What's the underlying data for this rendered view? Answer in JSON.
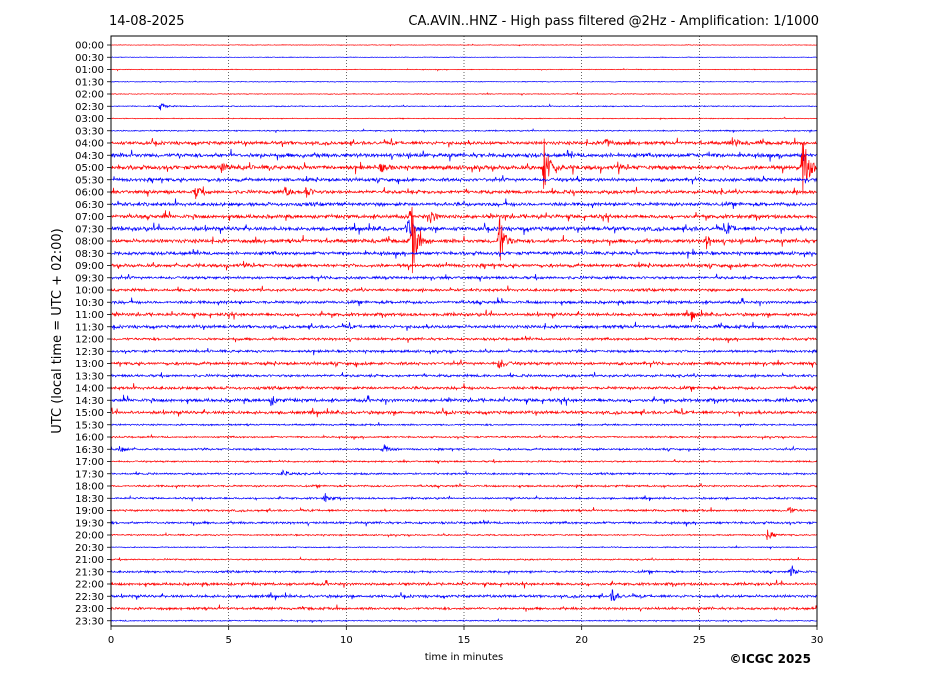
{
  "header": {
    "date": "14-08-2025",
    "title": "CA.AVIN..HNZ - High pass filtered @2Hz - Amplification: 1/1000"
  },
  "copyright": "©ICGC 2025",
  "chart_data": {
    "type": "line",
    "title": "CA.AVIN..HNZ - High pass filtered @2Hz - Amplification: 1/1000",
    "xlabel": "time in minutes",
    "ylabel": "UTC (local time = UTC + 02:00)",
    "xlim": [
      0,
      30
    ],
    "xticks": [
      "0",
      "5",
      "10",
      "15",
      "20",
      "25",
      "30"
    ],
    "grid_x": [
      5,
      10,
      15,
      20,
      25
    ],
    "row_labels": [
      "00:00",
      "00:30",
      "01:00",
      "01:30",
      "02:00",
      "02:30",
      "03:00",
      "03:30",
      "04:00",
      "04:30",
      "05:00",
      "05:30",
      "06:00",
      "06:30",
      "07:00",
      "07:30",
      "08:00",
      "08:30",
      "09:00",
      "09:30",
      "10:00",
      "10:30",
      "11:00",
      "11:30",
      "12:00",
      "12:30",
      "13:00",
      "13:30",
      "14:00",
      "14:30",
      "15:00",
      "15:30",
      "16:00",
      "16:30",
      "17:00",
      "17:30",
      "18:00",
      "18:30",
      "19:00",
      "19:30",
      "20:00",
      "20:30",
      "21:00",
      "21:30",
      "22:00",
      "22:30",
      "23:00",
      "23:30"
    ],
    "trace_colors": [
      "#ff0000",
      "#0000ff"
    ],
    "noise_levels": [
      0.3,
      0.3,
      0.35,
      0.35,
      0.4,
      0.5,
      0.4,
      0.6,
      1.6,
      1.9,
      2.0,
      1.6,
      1.6,
      1.7,
      1.8,
      1.9,
      1.8,
      1.6,
      1.6,
      1.3,
      1.3,
      1.4,
      1.5,
      1.5,
      1.2,
      1.2,
      1.4,
      1.2,
      1.4,
      1.6,
      1.5,
      0.8,
      0.8,
      0.9,
      0.8,
      0.9,
      0.9,
      0.9,
      1.0,
      1.1,
      0.7,
      0.5,
      0.7,
      1.0,
      1.3,
      1.3,
      1.2,
      0.6
    ],
    "events": [
      {
        "row": 5,
        "minute": 2.1,
        "amplitude": 4
      },
      {
        "row": 8,
        "minute": 21.0,
        "amplitude": 5
      },
      {
        "row": 8,
        "minute": 26.4,
        "amplitude": 5
      },
      {
        "row": 10,
        "minute": 18.4,
        "amplitude": 34
      },
      {
        "row": 10,
        "minute": 29.4,
        "amplitude": 40
      },
      {
        "row": 10,
        "minute": 11.5,
        "amplitude": 4
      },
      {
        "row": 10,
        "minute": 4.7,
        "amplitude": 4
      },
      {
        "row": 12,
        "minute": 3.6,
        "amplitude": 6
      },
      {
        "row": 12,
        "minute": 7.4,
        "amplitude": 5
      },
      {
        "row": 12,
        "minute": 8.3,
        "amplitude": 6
      },
      {
        "row": 14,
        "minute": 13.6,
        "amplitude": 6
      },
      {
        "row": 15,
        "minute": 12.6,
        "amplitude": 14
      },
      {
        "row": 15,
        "minute": 26.2,
        "amplitude": 5
      },
      {
        "row": 16,
        "minute": 12.8,
        "amplitude": 34
      },
      {
        "row": 16,
        "minute": 16.5,
        "amplitude": 28
      },
      {
        "row": 16,
        "minute": 25.3,
        "amplitude": 7
      },
      {
        "row": 22,
        "minute": 24.7,
        "amplitude": 4
      },
      {
        "row": 26,
        "minute": 16.5,
        "amplitude": 7
      },
      {
        "row": 29,
        "minute": 6.8,
        "amplitude": 5
      },
      {
        "row": 33,
        "minute": 11.6,
        "amplitude": 5
      },
      {
        "row": 33,
        "minute": 0.4,
        "amplitude": 4
      },
      {
        "row": 35,
        "minute": 7.3,
        "amplitude": 4
      },
      {
        "row": 37,
        "minute": 9.1,
        "amplitude": 5
      },
      {
        "row": 38,
        "minute": 28.8,
        "amplitude": 4
      },
      {
        "row": 40,
        "minute": 27.9,
        "amplitude": 5
      },
      {
        "row": 43,
        "minute": 28.9,
        "amplitude": 5
      },
      {
        "row": 45,
        "minute": 21.3,
        "amplitude": 6
      }
    ]
  }
}
